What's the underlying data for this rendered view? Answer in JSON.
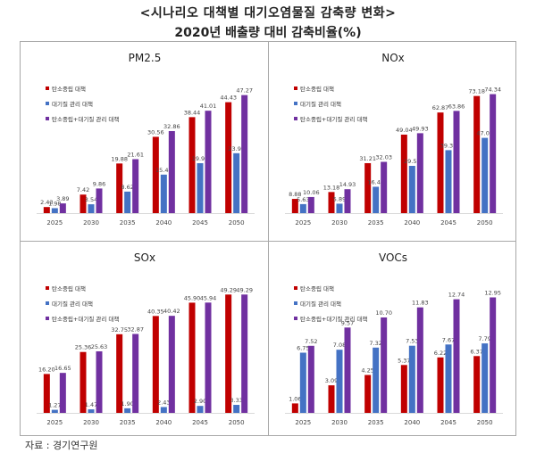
{
  "header": {
    "title": "<시나리오 대책별 대기오염물질 감축량 변화>",
    "subtitle": "2020년 배출량 대비 감축비율(%)"
  },
  "source": "자료 : 경기연구원",
  "colors": {
    "carbon_neutral": "#c00000",
    "air_quality": "#4472c4",
    "combined": "#7030a0"
  },
  "chart_data": [
    {
      "type": "bar",
      "title": "PM2.5",
      "categories": [
        "2025",
        "2030",
        "2035",
        "2040",
        "2045",
        "2050"
      ],
      "legend_position": "top-left",
      "ylim": [
        0,
        50
      ],
      "grid": false,
      "series": [
        {
          "name": "탄소중립 대책",
          "values": [
            2.43,
            7.42,
            19.88,
            30.56,
            38.44,
            44.43
          ]
        },
        {
          "name": "대기질 관리 대책",
          "values": [
            1.98,
            3.54,
            8.62,
            15.42,
            19.99,
            23.99
          ]
        },
        {
          "name": "탄소중립+대기질 관리 대책",
          "values": [
            3.89,
            9.86,
            21.61,
            32.86,
            41.01,
            47.27
          ]
        }
      ]
    },
    {
      "type": "bar",
      "title": "NOx",
      "categories": [
        "2025",
        "2030",
        "2035",
        "2040",
        "2045",
        "2050"
      ],
      "legend_position": "top-left",
      "ylim": [
        0,
        78
      ],
      "grid": false,
      "series": [
        {
          "name": "탄소중립 대책",
          "values": [
            8.88,
            13.18,
            31.21,
            49.04,
            62.87,
            73.18
          ]
        },
        {
          "name": "대기질 관리 대책",
          "values": [
            5.63,
            5.89,
            16.46,
            29.53,
            39.33,
            47.02
          ]
        },
        {
          "name": "탄소중립+대기질 관리 대책",
          "values": [
            10.06,
            14.93,
            32.03,
            49.93,
            63.86,
            74.34
          ]
        }
      ]
    },
    {
      "type": "bar",
      "title": "SOx",
      "categories": [
        "2025",
        "2030",
        "2035",
        "2040",
        "2045",
        "2050"
      ],
      "legend_position": "top-left",
      "ylim": [
        0,
        52
      ],
      "grid": false,
      "series": [
        {
          "name": "탄소중립 대책",
          "values": [
            16.2,
            25.36,
            32.75,
            40.35,
            45.9,
            49.29
          ]
        },
        {
          "name": "대기질 관리 대책",
          "values": [
            1.27,
            1.47,
            1.9,
            2.43,
            2.9,
            3.33
          ]
        },
        {
          "name": "탄소중립+대기질 관리 대책",
          "values": [
            16.65,
            25.63,
            32.87,
            40.42,
            45.94,
            49.29
          ]
        }
      ]
    },
    {
      "type": "bar",
      "title": "VOCs",
      "categories": [
        "2025",
        "2030",
        "2035",
        "2040",
        "2045",
        "2050"
      ],
      "legend_position": "top-left",
      "ylim": [
        0,
        14
      ],
      "grid": false,
      "series": [
        {
          "name": "탄소중립 대책",
          "values": [
            1.06,
            3.09,
            4.25,
            5.37,
            6.22,
            6.37
          ]
        },
        {
          "name": "대기질 관리 대책",
          "values": [
            6.75,
            7.08,
            7.32,
            7.53,
            7.67,
            7.79
          ]
        },
        {
          "name": "탄소중립+대기질 관리 대책",
          "values": [
            7.52,
            9.57,
            10.7,
            11.83,
            12.74,
            12.95
          ]
        }
      ]
    }
  ]
}
